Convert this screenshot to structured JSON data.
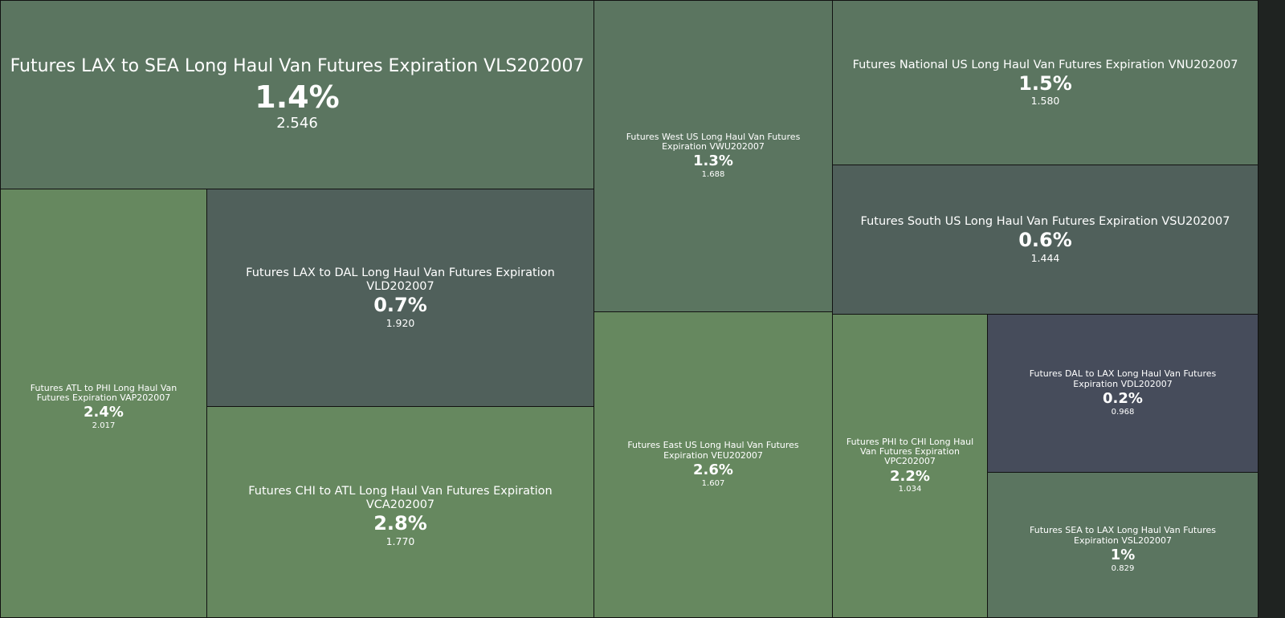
{
  "chart_data": {
    "type": "treemap",
    "title": "",
    "items": [
      {
        "label": "Futures LAX to SEA Long Haul Van Futures Expiration VLS202007",
        "change": "1.4%",
        "value": "2.546",
        "color": "#5B7560"
      },
      {
        "label": "Futures ATL to PHI Long Haul Van Futures Expiration VAP202007",
        "change": "2.4%",
        "value": "2.017",
        "color": "#66885F"
      },
      {
        "label": "Futures LAX to DAL Long Haul Van Futures Expiration VLD202007",
        "change": "0.7%",
        "value": "1.920",
        "color": "#50605B"
      },
      {
        "label": "Futures CHI to ATL Long Haul Van Futures Expiration VCA202007",
        "change": "2.8%",
        "value": "1.770",
        "color": "#66885F"
      },
      {
        "label": "Futures West US Long Haul Van Futures Expiration VWU202007",
        "change": "1.3%",
        "value": "1.688",
        "color": "#5B7560"
      },
      {
        "label": "Futures East US Long Haul Van Futures Expiration VEU202007",
        "change": "2.6%",
        "value": "1.607",
        "color": "#66885F"
      },
      {
        "label": "Futures National US Long Haul Van Futures Expiration VNU202007",
        "change": "1.5%",
        "value": "1.580",
        "color": "#5B7560"
      },
      {
        "label": "Futures South US Long Haul Van Futures Expiration VSU202007",
        "change": "0.6%",
        "value": "1.444",
        "color": "#50605B"
      },
      {
        "label": "Futures PHI to CHI Long Haul Van Futures Expiration VPC202007",
        "change": "2.2%",
        "value": "1.034",
        "color": "#66885F"
      },
      {
        "label": "Futures DAL to LAX Long Haul Van Futures Expiration VDL202007",
        "change": "0.2%",
        "value": "0.968",
        "color": "#464C5B"
      },
      {
        "label": "Futures SEA to LAX Long Haul Van Futures Expiration VSL202007",
        "change": "1%",
        "value": "0.829",
        "color": "#5B7560"
      }
    ]
  }
}
